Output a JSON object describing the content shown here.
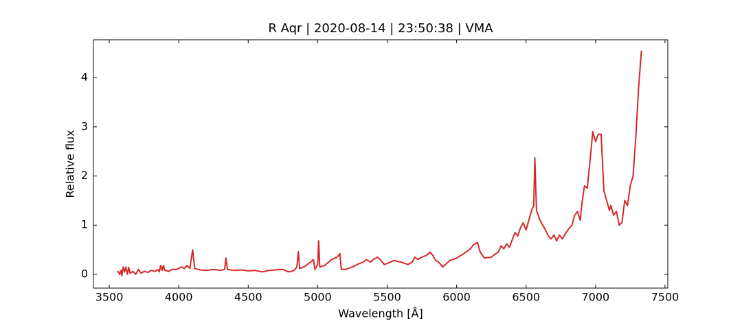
{
  "chart_data": {
    "type": "line",
    "title": "R Aqr | 2020-08-14 | 23:50:38 | VMA",
    "x_label": "Wavelength [Å]",
    "y_label": "Relative flux",
    "xlim": [
      3386,
      7520
    ],
    "ylim": [
      -0.28,
      4.77
    ],
    "xticks": [
      3500,
      4000,
      4500,
      5000,
      5500,
      6000,
      6500,
      7000,
      7500
    ],
    "yticks": [
      0,
      1,
      2,
      3,
      4
    ],
    "series": [
      {
        "color": "#d62728",
        "x": [
          3560,
          3575,
          3585,
          3590,
          3600,
          3610,
          3620,
          3630,
          3640,
          3650,
          3670,
          3690,
          3710,
          3730,
          3750,
          3780,
          3800,
          3830,
          3850,
          3860,
          3870,
          3880,
          3890,
          3900,
          3930,
          3950,
          3980,
          4000,
          4020,
          4040,
          4060,
          4080,
          4100,
          4115,
          4150,
          4200,
          4250,
          4300,
          4330,
          4340,
          4350,
          4400,
          4450,
          4500,
          4550,
          4600,
          4650,
          4700,
          4750,
          4780,
          4800,
          4830,
          4850,
          4861,
          4870,
          4900,
          4950,
          4970,
          4980,
          5000,
          5007,
          5015,
          5050,
          5100,
          5140,
          5160,
          5170,
          5200,
          5250,
          5300,
          5330,
          5350,
          5380,
          5400,
          5430,
          5450,
          5480,
          5500,
          5550,
          5600,
          5650,
          5680,
          5700,
          5720,
          5750,
          5780,
          5810,
          5830,
          5850,
          5870,
          5900,
          5920,
          5950,
          6000,
          6050,
          6100,
          6120,
          6150,
          6170,
          6200,
          6250,
          6280,
          6300,
          6320,
          6340,
          6360,
          6380,
          6400,
          6420,
          6440,
          6460,
          6480,
          6500,
          6520,
          6540,
          6555,
          6563,
          6575,
          6600,
          6620,
          6640,
          6660,
          6680,
          6700,
          6720,
          6740,
          6760,
          6800,
          6830,
          6850,
          6870,
          6890,
          6900,
          6920,
          6940,
          6960,
          6980,
          7000,
          7020,
          7040,
          7060,
          7080,
          7100,
          7110,
          7130,
          7150,
          7170,
          7190,
          7210,
          7230,
          7250,
          7270,
          7290,
          7310,
          7330
        ],
        "values": [
          0.07,
          0.0,
          0.08,
          -0.03,
          0.15,
          0.05,
          0.15,
          0.0,
          0.14,
          0.02,
          0.06,
          0.0,
          0.1,
          0.02,
          0.06,
          0.04,
          0.08,
          0.06,
          0.1,
          0.05,
          0.18,
          0.08,
          0.18,
          0.08,
          0.06,
          0.1,
          0.1,
          0.12,
          0.15,
          0.12,
          0.18,
          0.12,
          0.5,
          0.12,
          0.09,
          0.08,
          0.1,
          0.08,
          0.1,
          0.33,
          0.1,
          0.08,
          0.09,
          0.07,
          0.08,
          0.05,
          0.08,
          0.09,
          0.1,
          0.06,
          0.05,
          0.08,
          0.15,
          0.46,
          0.12,
          0.15,
          0.25,
          0.3,
          0.1,
          0.2,
          0.68,
          0.15,
          0.18,
          0.3,
          0.35,
          0.42,
          0.1,
          0.1,
          0.15,
          0.22,
          0.25,
          0.3,
          0.25,
          0.3,
          0.35,
          0.3,
          0.2,
          0.22,
          0.28,
          0.25,
          0.2,
          0.25,
          0.35,
          0.3,
          0.35,
          0.38,
          0.45,
          0.38,
          0.28,
          0.25,
          0.15,
          0.2,
          0.28,
          0.33,
          0.42,
          0.52,
          0.6,
          0.65,
          0.45,
          0.33,
          0.35,
          0.42,
          0.45,
          0.58,
          0.52,
          0.62,
          0.55,
          0.7,
          0.85,
          0.78,
          0.95,
          1.05,
          0.9,
          1.1,
          1.3,
          1.4,
          2.37,
          1.3,
          1.1,
          1.0,
          0.9,
          0.78,
          0.72,
          0.8,
          0.68,
          0.8,
          0.72,
          0.9,
          1.0,
          1.2,
          1.28,
          1.1,
          1.4,
          1.8,
          1.75,
          2.3,
          2.9,
          2.7,
          2.85,
          2.85,
          1.7,
          1.5,
          1.3,
          1.4,
          1.2,
          1.28,
          1.0,
          1.05,
          1.5,
          1.4,
          1.8,
          2.0,
          2.8,
          3.8,
          4.55
        ]
      }
    ]
  }
}
